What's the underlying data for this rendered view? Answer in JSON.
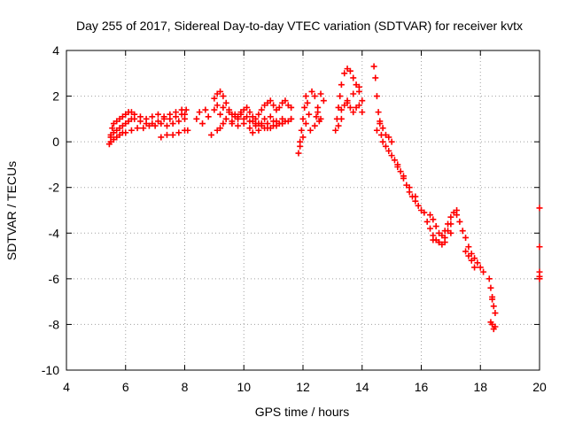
{
  "chart_data": {
    "type": "scatter",
    "title": "Day 255 of 2017, Sidereal Day-to-day VTEC variation (SDTVAR) for receiver kvtx",
    "xlabel": "GPS time / hours",
    "ylabel": "SDTVAR / TECUs",
    "xlim": [
      4,
      20
    ],
    "ylim": [
      -10,
      4
    ],
    "xticks": [
      4,
      6,
      8,
      10,
      12,
      14,
      16,
      18,
      20
    ],
    "yticks": [
      -10,
      -8,
      -6,
      -4,
      -2,
      0,
      2,
      4
    ],
    "grid": true,
    "marker": "+",
    "colors": {
      "series": "#ff0000",
      "grid": "#a0a0a0",
      "axis": "#000000"
    },
    "series": [
      {
        "name": "SDTVAR",
        "x": [
          5.45,
          5.5,
          5.55,
          5.6,
          5.7,
          5.8,
          5.9,
          6.0,
          6.1,
          6.2,
          6.3,
          6.5,
          6.7,
          6.9,
          7.1,
          7.3,
          7.5,
          7.7,
          7.9,
          8.05,
          5.5,
          5.6,
          5.7,
          5.8,
          5.9,
          6.0,
          6.1,
          6.2,
          6.3,
          6.5,
          6.7,
          6.9,
          7.1,
          7.3,
          7.5,
          7.7,
          7.9,
          8.0,
          5.5,
          5.6,
          5.7,
          5.8,
          5.9,
          6.0,
          6.2,
          6.4,
          6.6,
          6.8,
          7.0,
          7.2,
          7.4,
          7.6,
          7.8,
          8.0,
          7.2,
          7.4,
          7.6,
          7.8,
          8.0,
          8.1,
          8.4,
          8.5,
          8.6,
          8.7,
          8.8,
          8.9,
          9.0,
          9.1,
          9.2,
          9.3,
          9.4,
          9.5,
          9.6,
          9.7,
          9.8,
          9.9,
          10.0,
          10.1,
          10.2,
          10.3,
          10.4,
          10.5,
          10.6,
          10.7,
          10.8,
          10.9,
          11.0,
          11.1,
          11.2,
          11.3,
          11.4,
          11.5,
          11.6,
          9.1,
          9.2,
          9.3,
          9.4,
          9.6,
          9.8,
          10.0,
          10.2,
          10.4,
          10.6,
          10.8,
          11.0,
          11.2,
          11.4,
          11.6,
          9.0,
          9.2,
          9.4,
          9.6,
          9.8,
          10.0,
          10.2,
          10.4,
          10.6,
          10.8,
          11.0,
          11.2,
          9.1,
          9.3,
          9.5,
          9.7,
          9.9,
          10.1,
          10.3,
          10.5,
          10.7,
          10.9,
          11.1,
          11.3,
          10.3,
          10.5,
          10.7,
          10.9,
          11.1,
          11.3,
          11.5,
          11.6,
          11.85,
          11.9,
          11.95,
          12.0,
          12.05,
          12.1,
          12.15,
          12.2,
          12.25,
          11.9,
          12.0,
          12.1,
          12.3,
          12.4,
          12.5,
          12.6,
          12.7,
          12.4,
          12.5,
          12.6,
          12.45,
          12.55,
          13.1,
          13.15,
          13.2,
          13.25,
          13.3,
          13.4,
          13.5,
          13.6,
          13.7,
          13.8,
          13.9,
          14.0,
          13.3,
          13.4,
          13.5,
          13.6,
          13.7,
          13.8,
          13.9,
          14.0,
          13.2,
          13.3,
          13.5,
          13.7,
          13.9,
          14.4,
          14.45,
          14.5,
          14.55,
          14.6,
          14.65,
          14.7,
          14.8,
          14.9,
          15.0,
          14.5,
          14.6,
          14.7,
          14.8,
          14.9,
          15.0,
          15.1,
          15.2,
          15.3,
          15.4,
          15.5,
          15.6,
          15.7,
          15.8,
          15.9,
          16.0,
          15.2,
          15.4,
          15.6,
          15.8,
          16.1,
          16.2,
          16.3,
          16.4,
          16.5,
          16.6,
          16.7,
          16.8,
          16.9,
          17.0,
          17.1,
          17.2,
          16.3,
          16.4,
          16.5,
          16.6,
          16.7,
          16.8,
          16.9,
          17.0,
          16.4,
          16.6,
          16.8,
          17.0,
          17.2,
          17.3,
          17.4,
          17.5,
          17.6,
          17.7,
          17.8,
          17.9,
          18.0,
          18.1,
          17.5,
          17.6,
          17.7,
          17.8,
          18.3,
          18.35,
          18.4,
          18.45,
          18.5,
          18.4,
          18.45,
          18.5,
          18.35,
          18.4,
          20.0,
          20.0,
          20.0,
          20.0,
          20.0
        ],
        "y": [
          -0.1,
          0.3,
          0.6,
          0.8,
          0.9,
          1.0,
          1.1,
          1.2,
          1.3,
          1.3,
          1.2,
          1.1,
          1.0,
          1.1,
          1.2,
          1.1,
          1.2,
          1.3,
          1.4,
          1.4,
          0.2,
          0.4,
          0.5,
          0.6,
          0.7,
          0.8,
          0.9,
          1.0,
          1.0,
          0.9,
          0.8,
          0.8,
          0.9,
          1.0,
          1.0,
          1.1,
          1.2,
          1.2,
          0.0,
          0.1,
          0.2,
          0.3,
          0.4,
          0.4,
          0.5,
          0.6,
          0.6,
          0.7,
          0.7,
          0.8,
          0.7,
          0.8,
          0.9,
          1.0,
          0.2,
          0.3,
          0.3,
          0.4,
          0.5,
          0.5,
          1.0,
          1.3,
          0.8,
          1.4,
          1.1,
          0.3,
          1.9,
          2.1,
          2.2,
          2.0,
          1.7,
          1.4,
          1.2,
          1.1,
          1.0,
          1.2,
          1.4,
          1.5,
          1.3,
          1.1,
          1.0,
          1.2,
          1.4,
          1.6,
          1.7,
          1.8,
          1.6,
          1.4,
          1.5,
          1.7,
          1.8,
          1.6,
          1.5,
          0.5,
          0.6,
          0.8,
          1.0,
          0.9,
          1.1,
          1.0,
          0.9,
          0.8,
          0.7,
          0.8,
          0.9,
          0.8,
          0.9,
          1.0,
          1.4,
          1.2,
          1.0,
          0.8,
          0.7,
          0.8,
          0.6,
          0.7,
          0.8,
          0.6,
          0.7,
          0.8,
          1.6,
          1.5,
          1.3,
          1.2,
          1.3,
          1.1,
          0.9,
          0.8,
          1.0,
          1.1,
          0.9,
          1.0,
          0.4,
          0.5,
          0.6,
          0.6,
          0.7,
          0.8,
          0.9,
          1.0,
          -0.5,
          0.0,
          0.5,
          1.0,
          1.5,
          2.0,
          1.7,
          1.2,
          0.5,
          -0.2,
          0.2,
          0.8,
          2.2,
          2.0,
          1.5,
          1.0,
          1.8,
          0.7,
          1.3,
          2.1,
          1.1,
          0.9,
          0.5,
          1.0,
          1.5,
          2.0,
          2.5,
          3.0,
          3.2,
          3.1,
          2.8,
          2.5,
          2.2,
          1.8,
          1.4,
          1.6,
          1.8,
          1.5,
          1.3,
          1.5,
          1.6,
          1.3,
          0.7,
          1.0,
          1.7,
          2.1,
          2.4,
          3.3,
          2.8,
          2.0,
          1.3,
          0.8,
          0.3,
          0.0,
          -0.2,
          -0.4,
          -0.6,
          0.5,
          0.9,
          0.6,
          0.3,
          0.2,
          0.0,
          -0.8,
          -1.0,
          -1.3,
          -1.5,
          -1.9,
          -2.2,
          -2.4,
          -2.6,
          -2.8,
          -3.0,
          -1.1,
          -1.6,
          -2.0,
          -2.4,
          -3.1,
          -3.5,
          -3.8,
          -4.1,
          -4.3,
          -4.4,
          -4.5,
          -4.4,
          -3.9,
          -3.6,
          -3.1,
          -3.0,
          -3.2,
          -3.4,
          -3.7,
          -4.0,
          -4.1,
          -3.9,
          -3.6,
          -3.3,
          -4.3,
          -4.4,
          -4.2,
          -4.0,
          -3.2,
          -3.5,
          -3.9,
          -4.2,
          -4.6,
          -4.9,
          -5.1,
          -5.3,
          -5.5,
          -5.7,
          -4.8,
          -5.0,
          -5.2,
          -5.5,
          -6.0,
          -6.4,
          -6.8,
          -7.2,
          -7.5,
          -8.0,
          -8.2,
          -8.1,
          -7.9,
          -6.9,
          -2.9,
          -4.6,
          -5.7,
          -5.9,
          -6.0
        ]
      }
    ]
  }
}
